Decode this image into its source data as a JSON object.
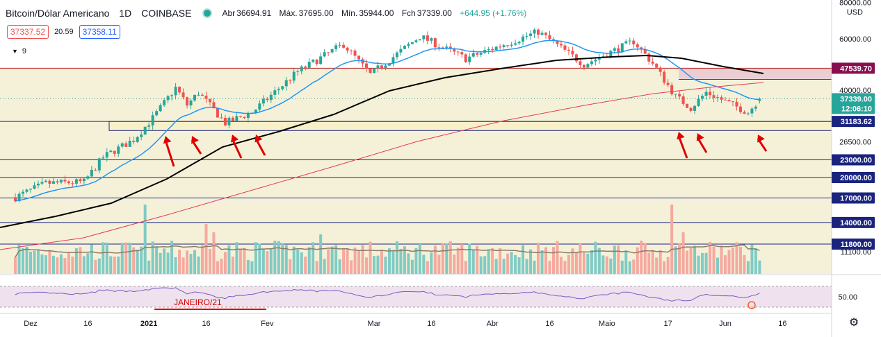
{
  "header": {
    "symbol": "Bitcoin/Dólar Americano",
    "interval": "1D",
    "exchange": "COINBASE",
    "open_label": "Abr",
    "open": "36694.91",
    "high_label": "Máx.",
    "high": "37695.00",
    "low_label": "Mín.",
    "low": "35944.00",
    "close_label": "Fch",
    "close": "37339.00",
    "change": "+644.95 (+1.76%)"
  },
  "trade": {
    "sell": "37337.52",
    "spread": "20.59",
    "buy": "37358.11"
  },
  "indicators_count": "9",
  "annotation": "JANEIRO/21",
  "colors": {
    "background_band": "#f5f1d9",
    "rsi_band": "#efe2ee",
    "candle_up": "#26a69a",
    "candle_down": "#ef5350",
    "ema_fast": "#2196f3",
    "ema_mid": "#000000",
    "ema_slow": "#e53956",
    "level_line": "#1a237e",
    "resistance_line": "#b71c1c",
    "arrow": "#e00000"
  },
  "chart_data": {
    "type": "candlestick",
    "title": "Bitcoin/Dólar Americano · 1D · COINBASE",
    "y_axis": {
      "scale": "log",
      "ticks": [
        "80000.00",
        "60000.00",
        "40000.00",
        "26500.00",
        "11100.00"
      ],
      "unit_label": "USD"
    },
    "x_axis": {
      "ticks": [
        "Dez",
        "16",
        "2021",
        "16",
        "Fev",
        "Mar",
        "16",
        "Abr",
        "16",
        "Maio",
        "17",
        "Jun",
        "16"
      ]
    },
    "price_labels": [
      {
        "text": "47539.70",
        "kind": "resistance"
      },
      {
        "text": "37339.00",
        "kind": "last"
      },
      {
        "text": "12:06:10",
        "kind": "countdown"
      },
      {
        "text": "31183.62",
        "kind": "support"
      },
      {
        "text": "23000.00",
        "kind": "level"
      },
      {
        "text": "20000.00",
        "kind": "level"
      },
      {
        "text": "17000.00",
        "kind": "level"
      },
      {
        "text": "14000.00",
        "kind": "level"
      },
      {
        "text": "11800.00",
        "kind": "level"
      }
    ],
    "horizontal_levels": [
      47539.7,
      31183.62,
      23000,
      20000,
      17000,
      14000,
      11800
    ],
    "support_zone": [
      29000,
      31183.62
    ],
    "resistance_zone": [
      43500,
      47539.7
    ],
    "price_path_anchors": [
      {
        "date": "2020-11-27",
        "close": 17100
      },
      {
        "date": "2020-12-05",
        "close": 19100
      },
      {
        "date": "2020-12-15",
        "close": 19300
      },
      {
        "date": "2020-12-20",
        "close": 23500
      },
      {
        "date": "2020-12-28",
        "close": 27000
      },
      {
        "date": "2021-01-02",
        "close": 32000
      },
      {
        "date": "2021-01-08",
        "close": 40700
      },
      {
        "date": "2021-01-11",
        "close": 35500
      },
      {
        "date": "2021-01-14",
        "close": 39200
      },
      {
        "date": "2021-01-21",
        "close": 30800
      },
      {
        "date": "2021-01-28",
        "close": 33500
      },
      {
        "date": "2021-02-09",
        "close": 46300
      },
      {
        "date": "2021-02-21",
        "close": 57500
      },
      {
        "date": "2021-02-28",
        "close": 45200
      },
      {
        "date": "2021-03-13",
        "close": 61200
      },
      {
        "date": "2021-03-25",
        "close": 51300
      },
      {
        "date": "2021-04-13",
        "close": 63500
      },
      {
        "date": "2021-04-25",
        "close": 49000
      },
      {
        "date": "2021-05-08",
        "close": 58800
      },
      {
        "date": "2021-05-13",
        "close": 49400
      },
      {
        "date": "2021-05-19",
        "close": 38000
      },
      {
        "date": "2021-05-23",
        "close": 34700
      },
      {
        "date": "2021-05-27",
        "close": 39300
      },
      {
        "date": "2021-06-07",
        "close": 33500
      },
      {
        "date": "2021-06-10",
        "close": 37339
      }
    ],
    "moving_averages": [
      {
        "color": "#2196f3"
      },
      {
        "color": "#000000"
      },
      {
        "color": "#e53956"
      }
    ],
    "rsi": {
      "tick": "50.00"
    },
    "grid": true
  }
}
